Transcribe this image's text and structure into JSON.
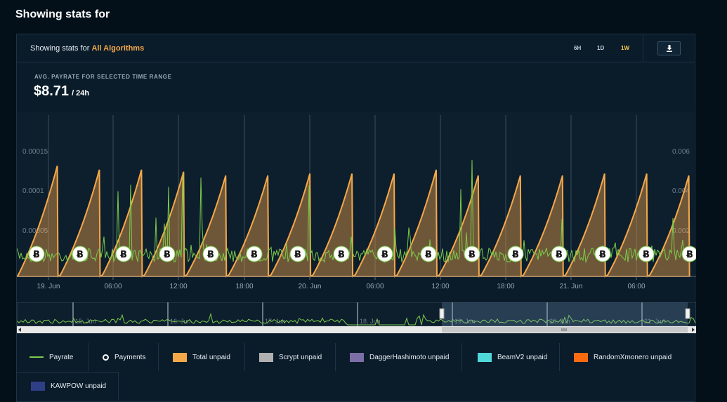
{
  "page": {
    "title": "Showing stats for"
  },
  "header": {
    "prefix": "Showing stats for",
    "algorithm": "All Algorithms",
    "ranges": [
      {
        "label": "6H",
        "active": false
      },
      {
        "label": "1D",
        "active": false
      },
      {
        "label": "1W",
        "active": true
      }
    ],
    "download_icon": "download-icon"
  },
  "summary": {
    "label": "AVG. PAYRATE FOR SELECTED TIME RANGE",
    "value": "$8.71",
    "unit": "/ 24h"
  },
  "colors": {
    "payrate": "#7ccc4a",
    "total_unpaid": "#f5a84a",
    "scrypt": "#b0b0b0",
    "dagger": "#7c6fa8",
    "beam": "#4fd8d8",
    "randomx": "#ff6a10",
    "kawpow": "#2f3f86"
  },
  "chart_data": {
    "type": "line",
    "x_ticks": [
      "19. Jun",
      "06:00",
      "12:00",
      "18:00",
      "20. Jun",
      "06:00",
      "12:00",
      "18:00",
      "21. Jun",
      "06:00"
    ],
    "y_left_ticks": [
      "0.00005",
      "0.0001",
      "0.00015"
    ],
    "y_right_ticks": [
      "0.002",
      "0.004",
      "0.006"
    ],
    "series": [
      {
        "name": "Payrate",
        "type": "line"
      },
      {
        "name": "Payments",
        "type": "marker",
        "count": 16
      },
      {
        "name": "Total unpaid",
        "type": "area",
        "cycles": 16,
        "peaks": [
          0.0057,
          0.0055,
          0.0055,
          0.0054,
          0.0052,
          0.0052,
          0.0053,
          0.0053,
          0.0053,
          0.0055,
          0.0052,
          0.0052,
          0.0052,
          0.0053,
          0.0053,
          0.0052
        ]
      }
    ],
    "payment_symbol": "Ƀ",
    "navigator_ticks": [
      "15. Jun",
      "16. Jun",
      "17. Jun",
      "18. Jun",
      "19. Jun",
      "20. Jun",
      "21. Jun"
    ]
  },
  "legend": [
    {
      "label": "Payrate",
      "kind": "line"
    },
    {
      "label": "Payments",
      "kind": "ring"
    },
    {
      "label": "Total unpaid",
      "kind": "box",
      "color": "#f5a84a"
    },
    {
      "label": "Scrypt unpaid",
      "kind": "box",
      "color": "#b0b0b0"
    },
    {
      "label": "DaggerHashimoto unpaid",
      "kind": "box",
      "color": "#7c6fa8"
    },
    {
      "label": "BeamV2 unpaid",
      "kind": "box",
      "color": "#4fd8d8"
    },
    {
      "label": "RandomXmonero unpaid",
      "kind": "box",
      "color": "#ff6a10"
    },
    {
      "label": "KAWPOW unpaid",
      "kind": "box",
      "color": "#2f3f86"
    }
  ]
}
